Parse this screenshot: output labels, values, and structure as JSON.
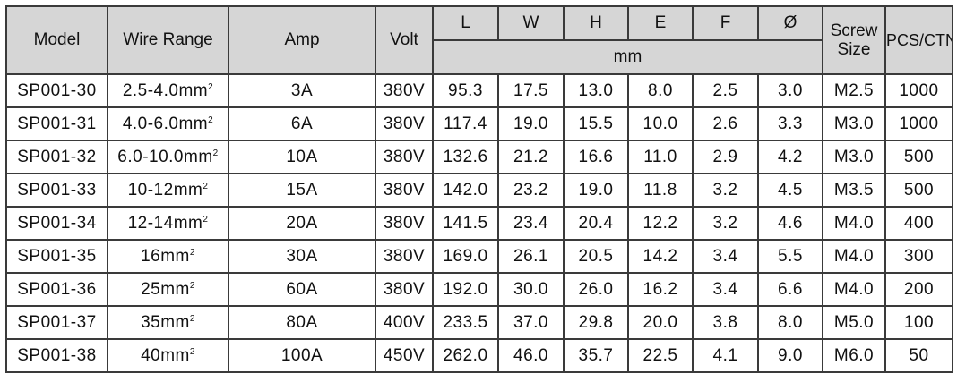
{
  "headers": {
    "model": "Model",
    "wire_range": "Wire Range",
    "amp": "Amp",
    "volt": "Volt",
    "L": "L",
    "W": "W",
    "H": "H",
    "E": "E",
    "F": "F",
    "diameter": "Ø",
    "unit": "mm",
    "screw_size_line1": "Screw",
    "screw_size_line2": "Size",
    "pcs_ctn": "PCS/CTN"
  },
  "rows": [
    {
      "model": "SP001-30",
      "wire": "2.5-4.0mm",
      "sup": "2",
      "amp": "3A",
      "volt": "380V",
      "L": "95.3",
      "W": "17.5",
      "H": "13.0",
      "E": "8.0",
      "F": "2.5",
      "d": "3.0",
      "screw": "M2.5",
      "pcs": "1000"
    },
    {
      "model": "SP001-31",
      "wire": "4.0-6.0mm",
      "sup": "2",
      "amp": "6A",
      "volt": "380V",
      "L": "117.4",
      "W": "19.0",
      "H": "15.5",
      "E": "10.0",
      "F": "2.6",
      "d": "3.3",
      "screw": "M3.0",
      "pcs": "1000"
    },
    {
      "model": "SP001-32",
      "wire": "6.0-10.0mm",
      "sup": "2",
      "amp": "10A",
      "volt": "380V",
      "L": "132.6",
      "W": "21.2",
      "H": "16.6",
      "E": "11.0",
      "F": "2.9",
      "d": "4.2",
      "screw": "M3.0",
      "pcs": "500"
    },
    {
      "model": "SP001-33",
      "wire": "10-12mm",
      "sup": "2",
      "amp": "15A",
      "volt": "380V",
      "L": "142.0",
      "W": "23.2",
      "H": "19.0",
      "E": "11.8",
      "F": "3.2",
      "d": "4.5",
      "screw": "M3.5",
      "pcs": "500"
    },
    {
      "model": "SP001-34",
      "wire": "12-14mm",
      "sup": "2",
      "amp": "20A",
      "volt": "380V",
      "L": "141.5",
      "W": "23.4",
      "H": "20.4",
      "E": "12.2",
      "F": "3.2",
      "d": "4.6",
      "screw": "M4.0",
      "pcs": "400"
    },
    {
      "model": "SP001-35",
      "wire": "16mm",
      "sup": "2",
      "amp": "30A",
      "volt": "380V",
      "L": "169.0",
      "W": "26.1",
      "H": "20.5",
      "E": "14.2",
      "F": "3.4",
      "d": "5.5",
      "screw": "M4.0",
      "pcs": "300"
    },
    {
      "model": "SP001-36",
      "wire": "25mm",
      "sup": "2",
      "amp": "60A",
      "volt": "380V",
      "L": "192.0",
      "W": "30.0",
      "H": "26.0",
      "E": "16.2",
      "F": "3.4",
      "d": "6.6",
      "screw": "M4.0",
      "pcs": "200"
    },
    {
      "model": "SP001-37",
      "wire": "35mm",
      "sup": "2",
      "amp": "80A",
      "volt": "400V",
      "L": "233.5",
      "W": "37.0",
      "H": "29.8",
      "E": "20.0",
      "F": "3.8",
      "d": "8.0",
      "screw": "M5.0",
      "pcs": "100"
    },
    {
      "model": "SP001-38",
      "wire": "40mm",
      "sup": "2",
      "amp": "100A",
      "volt": "450V",
      "L": "262.0",
      "W": "46.0",
      "H": "35.7",
      "E": "22.5",
      "F": "4.1",
      "d": "9.0",
      "screw": "M6.0",
      "pcs": "50"
    }
  ]
}
